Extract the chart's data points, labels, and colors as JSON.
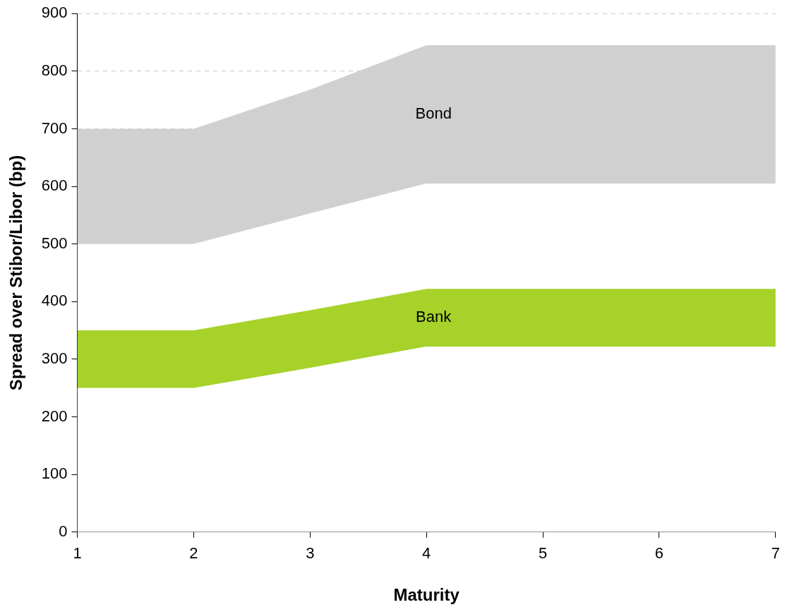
{
  "chart_data": {
    "type": "area",
    "stacked": true,
    "xlabel": "Maturity",
    "ylabel": "Spread over Stibor/Libor (bp)",
    "x": [
      1,
      2,
      3,
      4,
      5,
      6,
      7
    ],
    "series": [
      {
        "color": "#ffffff",
        "values": [
          250,
          250,
          285,
          322,
          322,
          322,
          322
        ]
      },
      {
        "name": "Bank",
        "color": "#a6d22a",
        "values": [
          100,
          100,
          100,
          100,
          100,
          100,
          100
        ]
      },
      {
        "color": "#ffffff",
        "values": [
          150,
          150,
          168,
          183,
          183,
          183,
          183
        ]
      },
      {
        "name": "Bond",
        "color": "#d0d0d0",
        "values": [
          200,
          200,
          215,
          240,
          240,
          240,
          240
        ]
      }
    ],
    "xlim": [
      1,
      7
    ],
    "xticks": [
      1,
      2,
      3,
      4,
      5,
      6,
      7
    ],
    "ylim": [
      0,
      900
    ],
    "yticks": [
      0,
      100,
      200,
      300,
      400,
      500,
      600,
      700,
      800,
      900
    ],
    "grid": "y",
    "legend": false
  }
}
